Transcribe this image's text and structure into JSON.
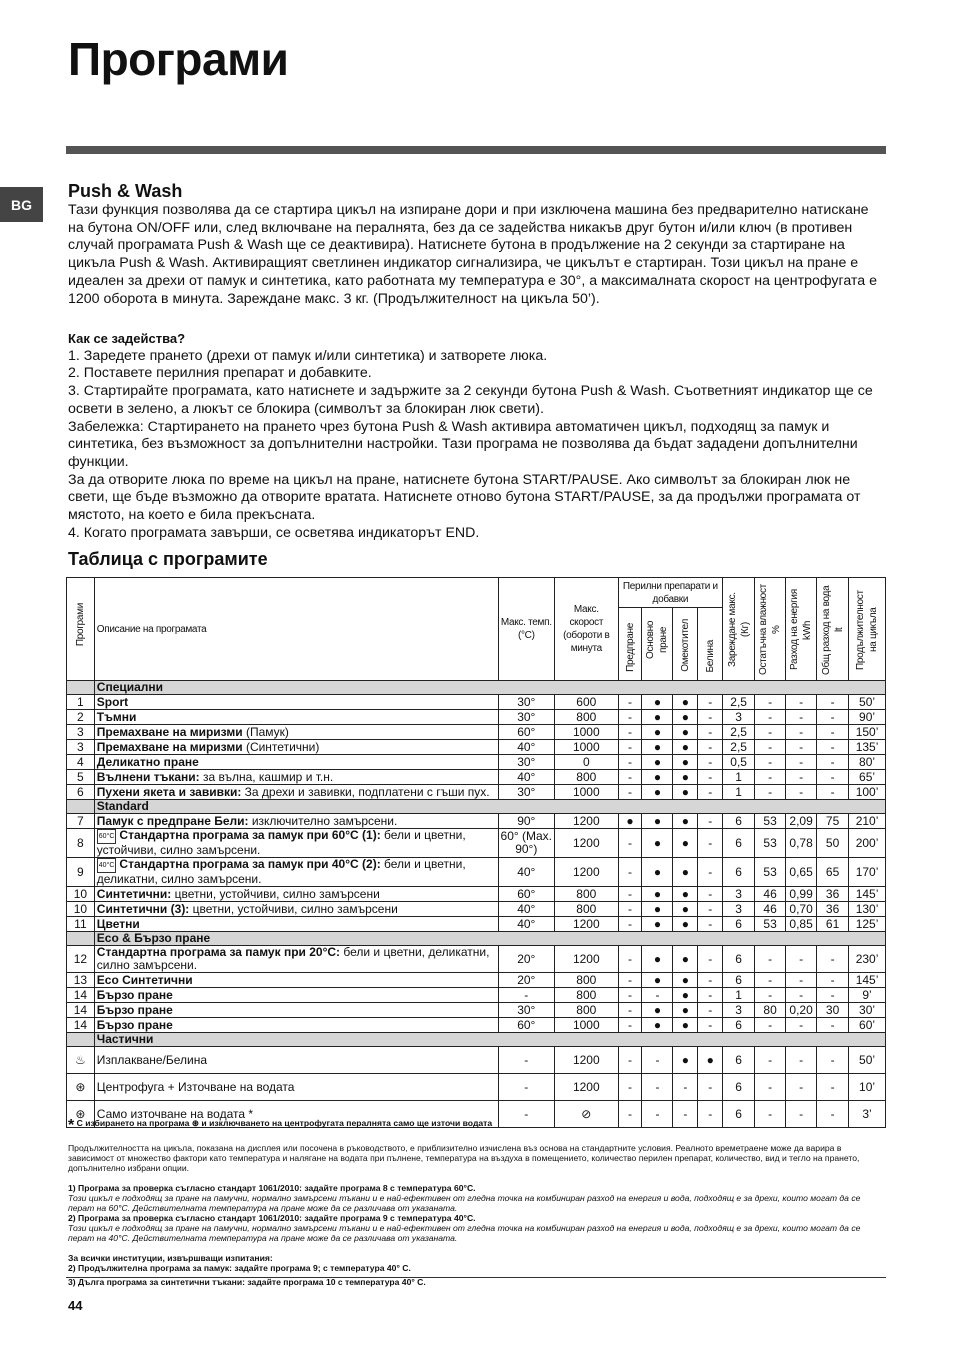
{
  "title": "Програми",
  "lang_tab": "BG",
  "push_wash": {
    "heading": "Push & Wash",
    "text": "Тази функция позволява да се стартира цикъл на изпиране дори и при изключена машина без предварително натискане на бутона ON/OFF или, след включване на пералнята, без да се задейства никакъв друг бутон и/или ключ (в противен случай програмата Push & Wash ще се деактивира). Натиснете бутона в продължение на 2 секунди за стартиране на цикъла Push & Wash. Активиращият светлинен индикатор сигнализира, че цикълът е стартиран. Този цикъл на пране е идеален за дрехи от памук и синтетика, като работната му температура е 30°, а максималната скорост на центрофугата е 1200 оборота в минута. Зареждане макс. 3 кг. (Продължителност на цикъла 50’)."
  },
  "how": {
    "heading": "Как се задейства?",
    "lines": [
      "1. Заредете прането (дрехи от памук и/или синтетика) и затворете люка.",
      "2. Поставете перилния препарат и добавките.",
      "3. Стартирайте програмата, като натиснете и задържите за 2 секунди бутона Push & Wash. Съответният индикатор ще се освети в зелено, а люкът се блокира (символът за блокиран люк свети).",
      "Забележка: Стартирането на прането чрез бутона Push & Wash активира автоматичен цикъл, подходящ за памук и синтетика, без възможност за допълнителни настройки. Тази програма не позволява да бъдат зададени допълнителни функции.",
      "За да отворите люка по време на цикъл на пране, натиснете бутона START/PAUSE. Ако символът за блокиран люк не свети, ще бъде възможно да отворите вратата. Натиснете отново бутона START/PAUSE, за да продължи програмата от мястото, на което е била прекъсната.",
      "4. Когато програмата завърши, се осветява индикаторът END."
    ]
  },
  "table_heading": "Таблица с програмите",
  "table": {
    "headers": {
      "prog": "Програми",
      "desc": "Описание на програмата",
      "temp": "Макс. темп. (°C)",
      "speed": "Макс. скорост (обороти в минута",
      "detergents": "Перилни препарати и добавки",
      "pre": "Предпране",
      "main": "Основно пране",
      "soft": "Омекотител",
      "bleach": "Белина",
      "load": "Зареждане макс. (Кг)",
      "moist": "Остатъчна влажност %",
      "energy": "Разход на енергия kWh",
      "water": "Общ разход на вода lt",
      "dur": "Продължителност на цикъла"
    },
    "rows": [
      {
        "section": "Специални"
      },
      {
        "n": "1",
        "b": "Sport",
        "t": "",
        "v": [
          "30°",
          "600",
          "-",
          "●",
          "●",
          "-",
          "2,5",
          "-",
          "-",
          "-",
          "50’"
        ]
      },
      {
        "n": "2",
        "b": "Тъмни",
        "t": "",
        "v": [
          "30°",
          "800",
          "-",
          "●",
          "●",
          "-",
          "3",
          "-",
          "-",
          "-",
          "90’"
        ]
      },
      {
        "n": "3",
        "b": "Премахване на миризми",
        "t": " (Памук)",
        "v": [
          "60°",
          "1000",
          "-",
          "●",
          "●",
          "-",
          "2,5",
          "-",
          "-",
          "-",
          "150’"
        ]
      },
      {
        "n": "3",
        "b": "Премахване на миризми",
        "t": "  (Синтетични)",
        "v": [
          "40°",
          "1000",
          "-",
          "●",
          "●",
          "-",
          "2,5",
          "-",
          "-",
          "-",
          "135’"
        ]
      },
      {
        "n": "4",
        "b": "Деликатно пране",
        "t": "",
        "v": [
          "30°",
          "0",
          "-",
          "●",
          "●",
          "-",
          "0,5",
          "-",
          "-",
          "-",
          "80’"
        ]
      },
      {
        "n": "5",
        "b": "Вълнени тъкани:",
        "t": " за вълна, кашмир и т.н.",
        "v": [
          "40°",
          "800",
          "-",
          "●",
          "●",
          "-",
          "1",
          "-",
          "-",
          "-",
          "65’"
        ]
      },
      {
        "n": "6",
        "b": "Пухени якета и завивки:",
        "t": " За дрехи и завивки, подплатени с гъши пух.",
        "v": [
          "30°",
          "1000",
          "-",
          "●",
          "●",
          "-",
          "1",
          "-",
          "-",
          "-",
          "100’"
        ]
      },
      {
        "section": "Standard"
      },
      {
        "n": "7",
        "b": "Памук с предпране Бели:",
        "t": " изключително замърсени.",
        "v": [
          "90°",
          "1200",
          "●",
          "●",
          "●",
          "-",
          "6",
          "53",
          "2,09",
          "75",
          "210’"
        ]
      },
      {
        "n": "8",
        "icon": "60°C",
        "b": "Стандартна програма за памук при 60°C (1):",
        "t": " бели и цветни, устойчиви, силно замърсени.",
        "v": [
          "60° (Max. 90°)",
          "1200",
          "-",
          "●",
          "●",
          "-",
          "6",
          "53",
          "0,78",
          "50",
          "200’"
        ],
        "two": true
      },
      {
        "n": "9",
        "icon": "40°C",
        "b": "Стандартна програма за памук при 40°C (2):",
        "t": " бели и цветни, деликатни, силно замърсени.",
        "v": [
          "40°",
          "1200",
          "-",
          "●",
          "●",
          "-",
          "6",
          "53",
          "0,65",
          "65",
          "170’"
        ],
        "two": true
      },
      {
        "n": "10",
        "b": "Синтетични:",
        "t": " цветни, устойчиви, силно замърсени",
        "v": [
          "60°",
          "800",
          "-",
          "●",
          "●",
          "-",
          "3",
          "46",
          "0,99",
          "36",
          "145’"
        ]
      },
      {
        "n": "10",
        "b": "Синтетични (3):",
        "t": " цветни, устойчиви, силно замърсени",
        "v": [
          "40°",
          "800",
          "-",
          "●",
          "●",
          "-",
          "3",
          "46",
          "0,70",
          "36",
          "130’"
        ]
      },
      {
        "n": "11",
        "b": "Цветни",
        "t": "",
        "v": [
          "40°",
          "1200",
          "-",
          "●",
          "●",
          "-",
          "6",
          "53",
          "0,85",
          "61",
          "125’"
        ]
      },
      {
        "section": "Eco & Бързо пране"
      },
      {
        "n": "12",
        "b": "Стандартна програма за памук при 20°C:",
        "t": " бели и цветни, деликатни, силно замърсени.",
        "v": [
          "20°",
          "1200",
          "-",
          "●",
          "●",
          "-",
          "6",
          "-",
          "-",
          "-",
          "230’"
        ],
        "two": true
      },
      {
        "n": "13",
        "b": "Eco Синтетични",
        "t": "",
        "v": [
          "20°",
          "800",
          "-",
          "●",
          "●",
          "-",
          "6",
          "-",
          "-",
          "-",
          "145’"
        ]
      },
      {
        "n": "14",
        "b": "Бързо пране",
        "t": "",
        "v": [
          "-",
          "800",
          "-",
          "-",
          "●",
          "-",
          "1",
          "-",
          "-",
          "-",
          "9’"
        ]
      },
      {
        "n": "14",
        "b": "Бързо пране",
        "t": "",
        "v": [
          "30°",
          "800",
          "-",
          "●",
          "●",
          "-",
          "3",
          "80",
          "0,20",
          "30",
          "30’"
        ]
      },
      {
        "n": "14",
        "b": "Бързо пране",
        "t": "",
        "v": [
          "60°",
          "1000",
          "-",
          "●",
          "●",
          "-",
          "6",
          "-",
          "-",
          "-",
          "60’"
        ]
      },
      {
        "section": "Частични"
      },
      {
        "n": "♨",
        "b": "",
        "t": "Изплакване/Белина",
        "v": [
          "-",
          "1200",
          "-",
          "-",
          "●",
          "●",
          "6",
          "-",
          "-",
          "-",
          "50’"
        ],
        "tall": true
      },
      {
        "n": "⊛",
        "b": "",
        "t": "Центрофуга + Източване на водата",
        "v": [
          "-",
          "1200",
          "-",
          "-",
          "-",
          "-",
          "6",
          "-",
          "-",
          "-",
          "10’"
        ],
        "tall": true
      },
      {
        "n": "⊛",
        "b": "",
        "t": "Само източване на водата  *",
        "v": [
          "-",
          "⊘",
          "-",
          "-",
          "-",
          "-",
          "6",
          "-",
          "-",
          "-",
          "3’"
        ],
        "tall": true
      }
    ]
  },
  "notes": {
    "star": "С избирането на програма ⊛ и изключването на центрофугата пералнята само ще източи водата",
    "duration": "Продължителността на цикъла, показана на дисплея или посочена в ръководството, е приблизително изчислена въз основа на стандартните условия. Реалното времетраене може да варира в зависимост от множество фактори като температура и налягане на водата при пълнене, температура на въздуха в помещението, количество перилен препарат, количество, вид и тегло на прането, допълнително избрани опции.",
    "n1": "1) Програма за проверка съгласно стандарт 1061/2010: задайте програма 8 с температура 60°C.",
    "n1i": "Този цикъл е подходящ за пране на памучни, нормално замърсени тъкани и е най-ефективен от гледна точка на комбиниран разход на енергия и вода, подходящ е за дрехи, които могат да се перат на 60°C. Действителната температура на пране може да се различава от указаната.",
    "n2": "2) Програма за проверка съгласно стандарт 1061/2010: задайте програма 9 с температура 40°C.",
    "n2i": "Този цикъл е подходящ за пране на памучни, нормално замърсени тъкани и е най-ефективен от гледна точка на комбиниран разход на енергия и вода, подходящ е за дрехи, които могат да се перат на 40°C. Действителната температура на пране може да се различава от указаната.",
    "inst": "За всички институции, извършващи изпитания:",
    "inst2": "2) Продължителна програма за памук: задайте програма 9; с температура 40° C.",
    "inst3": "3) Дълга програма за синтетични тъкани: задайте програма 10 с температура 40° C."
  },
  "page_number": "44"
}
